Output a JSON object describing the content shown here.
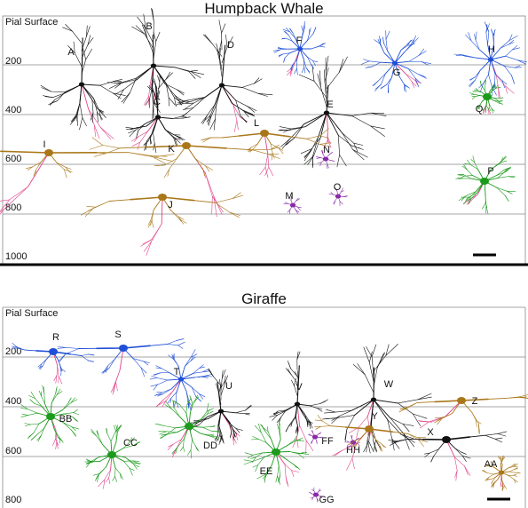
{
  "panels": [
    {
      "title": "Humpback Whale",
      "pial_label": "Pial Surface",
      "depth_labels": [
        "200",
        "400",
        "600",
        "800",
        "1000"
      ],
      "neurons": [
        {
          "label": "A",
          "color": "#111111"
        },
        {
          "label": "B",
          "color": "#111111"
        },
        {
          "label": "C",
          "color": "#111111"
        },
        {
          "label": "D",
          "color": "#111111"
        },
        {
          "label": "E",
          "color": "#111111"
        },
        {
          "label": "F",
          "color": "#1f4fd6"
        },
        {
          "label": "G",
          "color": "#1f4fd6"
        },
        {
          "label": "H",
          "color": "#1f4fd6"
        },
        {
          "label": "Q",
          "color": "#1b9a1b"
        },
        {
          "label": "I",
          "color": "#a9771a"
        },
        {
          "label": "K",
          "color": "#a9771a"
        },
        {
          "label": "L",
          "color": "#a9771a"
        },
        {
          "label": "N",
          "color": "#8a2aa8"
        },
        {
          "label": "M",
          "color": "#8a2aa8"
        },
        {
          "label": "O",
          "color": "#8a2aa8"
        },
        {
          "label": "J",
          "color": "#a9771a"
        },
        {
          "label": "P",
          "color": "#1b9a1b"
        }
      ]
    },
    {
      "title": "Giraffe",
      "pial_label": "Pial Surface",
      "depth_labels": [
        "200",
        "400",
        "600",
        "800"
      ],
      "neurons": [
        {
          "label": "R",
          "color": "#1f4fd6"
        },
        {
          "label": "S",
          "color": "#1f4fd6"
        },
        {
          "label": "T",
          "color": "#1f4fd6"
        },
        {
          "label": "U",
          "color": "#111111"
        },
        {
          "label": "V",
          "color": "#111111"
        },
        {
          "label": "W",
          "color": "#111111"
        },
        {
          "label": "Z",
          "color": "#a9771a"
        },
        {
          "label": "BB",
          "color": "#1b9a1b"
        },
        {
          "label": "CC",
          "color": "#1b9a1b"
        },
        {
          "label": "DD",
          "color": "#1b9a1b"
        },
        {
          "label": "EE",
          "color": "#1b9a1b"
        },
        {
          "label": "FF",
          "color": "#8a2aa8"
        },
        {
          "label": "HH",
          "color": "#8a2aa8"
        },
        {
          "label": "Y",
          "color": "#a9771a"
        },
        {
          "label": "X",
          "color": "#111111"
        },
        {
          "label": "AA",
          "color": "#a9771a"
        },
        {
          "label": "GG",
          "color": "#8a2aa8"
        }
      ]
    }
  ],
  "colors": {
    "pyramidal": "#111111",
    "axon": "#e0458a",
    "blue": "#1f4fd6",
    "green": "#1b9a1b",
    "gold": "#a9771a",
    "purple": "#8a2aa8",
    "grid": "#888888"
  }
}
